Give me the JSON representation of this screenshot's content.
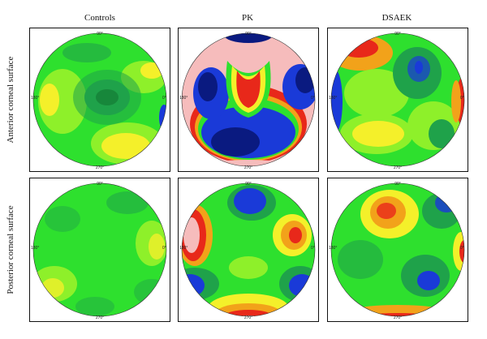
{
  "columns": [
    "Controls",
    "PK",
    "DSAEK"
  ],
  "rows": [
    "Anterior corneal surface",
    "Posterior corneal surface"
  ],
  "axis_ticks": {
    "top": "90°",
    "bottom": "270°",
    "left": "180°",
    "right": "0°"
  },
  "palette": {
    "green": "#2ee02e",
    "lightgreen": "#8ef02a",
    "darkgreen": "#1fa24a",
    "yellow": "#f4f02a",
    "orange": "#f2a21a",
    "red": "#e8281a",
    "blue": "#1a3ad8",
    "navy": "#0a1a80",
    "pink": "#f6bcbc"
  }
}
